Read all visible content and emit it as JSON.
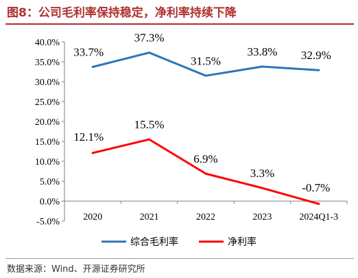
{
  "figure_title": "图8：公司毛利率保持稳定，净利率持续下降",
  "source_note": "数据来源：Wind、开源证券研究所",
  "chart_data": {
    "type": "line",
    "title": "",
    "xlabel": "",
    "ylabel": "",
    "categories": [
      "2020",
      "2021",
      "2022",
      "2023",
      "2024Q1-3"
    ],
    "ylim": [
      -5,
      40
    ],
    "yticks": [
      -5,
      0,
      5,
      10,
      15,
      20,
      25,
      30,
      35,
      40
    ],
    "ytick_labels": [
      "-5.0%",
      "0.0%",
      "5.0%",
      "10.0%",
      "15.0%",
      "20.0%",
      "25.0%",
      "30.0%",
      "35.0%",
      "40.0%"
    ],
    "grid": false,
    "legend_position": "bottom",
    "series": [
      {
        "name": "综合毛利率",
        "color": "#2e75b6",
        "values": [
          33.7,
          37.3,
          31.5,
          33.8,
          32.9
        ],
        "labels": [
          "33.7%",
          "37.3%",
          "31.5%",
          "33.8%",
          "32.9%"
        ]
      },
      {
        "name": "净利率",
        "color": "#ff0000",
        "values": [
          12.1,
          15.5,
          6.9,
          3.3,
          -0.7
        ],
        "labels": [
          "12.1%",
          "15.5%",
          "6.9%",
          "3.3%",
          "-0.7%"
        ]
      }
    ]
  }
}
